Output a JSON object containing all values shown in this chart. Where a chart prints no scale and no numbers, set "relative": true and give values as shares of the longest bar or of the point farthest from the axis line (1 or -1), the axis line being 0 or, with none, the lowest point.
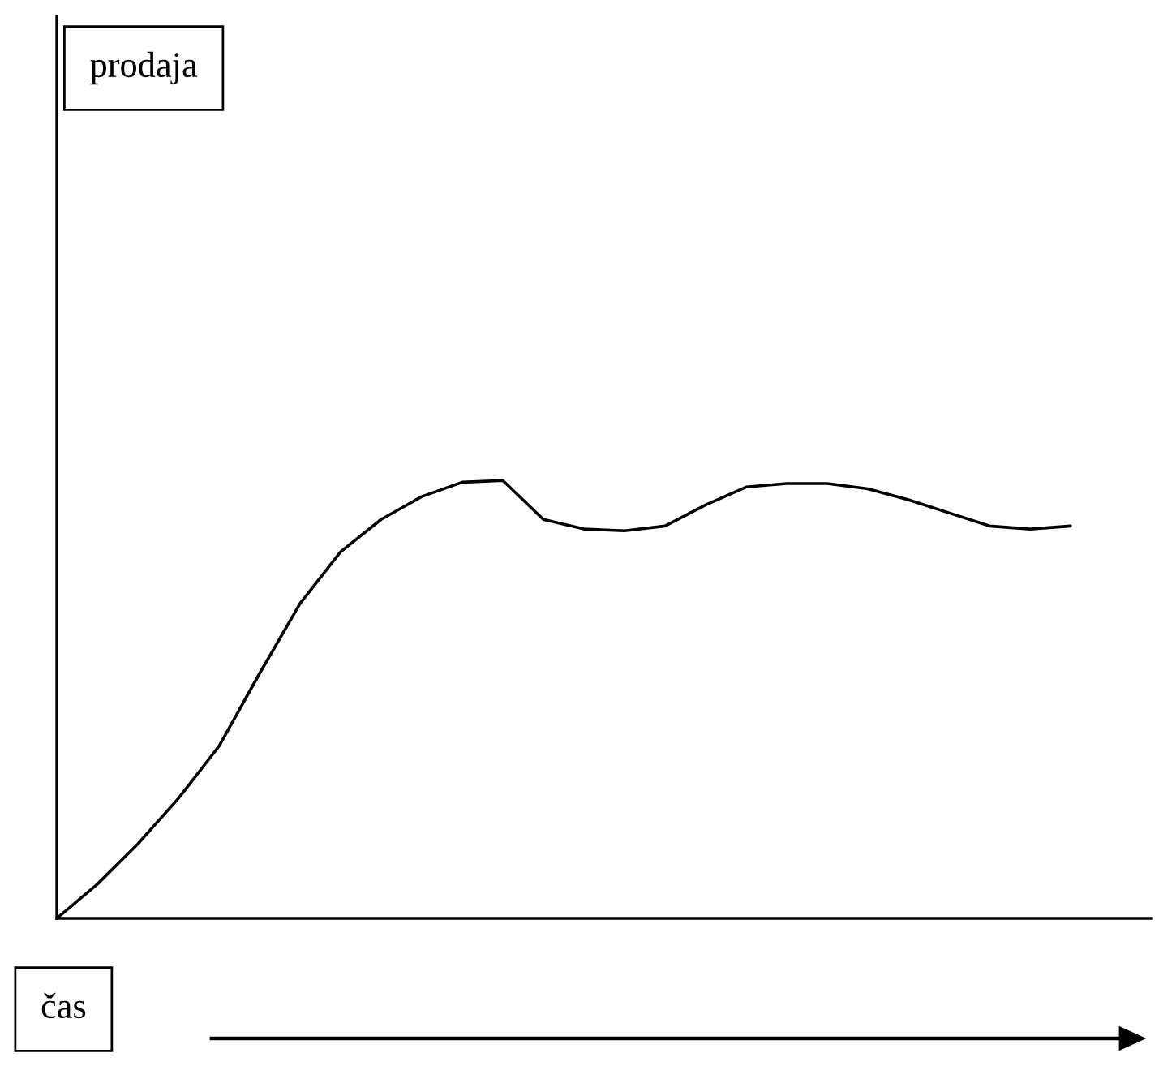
{
  "chart_data": {
    "type": "line",
    "relative": true,
    "annotations": [
      "prodaja"
    ],
    "xlabel": "čas",
    "color": "#000000",
    "categories": [
      null,
      null,
      null,
      null,
      null,
      null,
      null,
      null,
      null,
      null,
      null,
      null,
      null,
      null,
      null,
      null,
      null,
      null,
      null,
      null,
      null,
      null,
      null,
      null,
      null,
      null
    ],
    "values": [
      0,
      0.078,
      0.17,
      0.274,
      0.393,
      0.559,
      0.719,
      0.837,
      0.911,
      0.963,
      0.996,
      1,
      0.911,
      0.889,
      0.885,
      0.896,
      0.944,
      0.985,
      0.993,
      0.993,
      0.981,
      0.956,
      0.926,
      0.896,
      0.889,
      0.896
    ]
  }
}
